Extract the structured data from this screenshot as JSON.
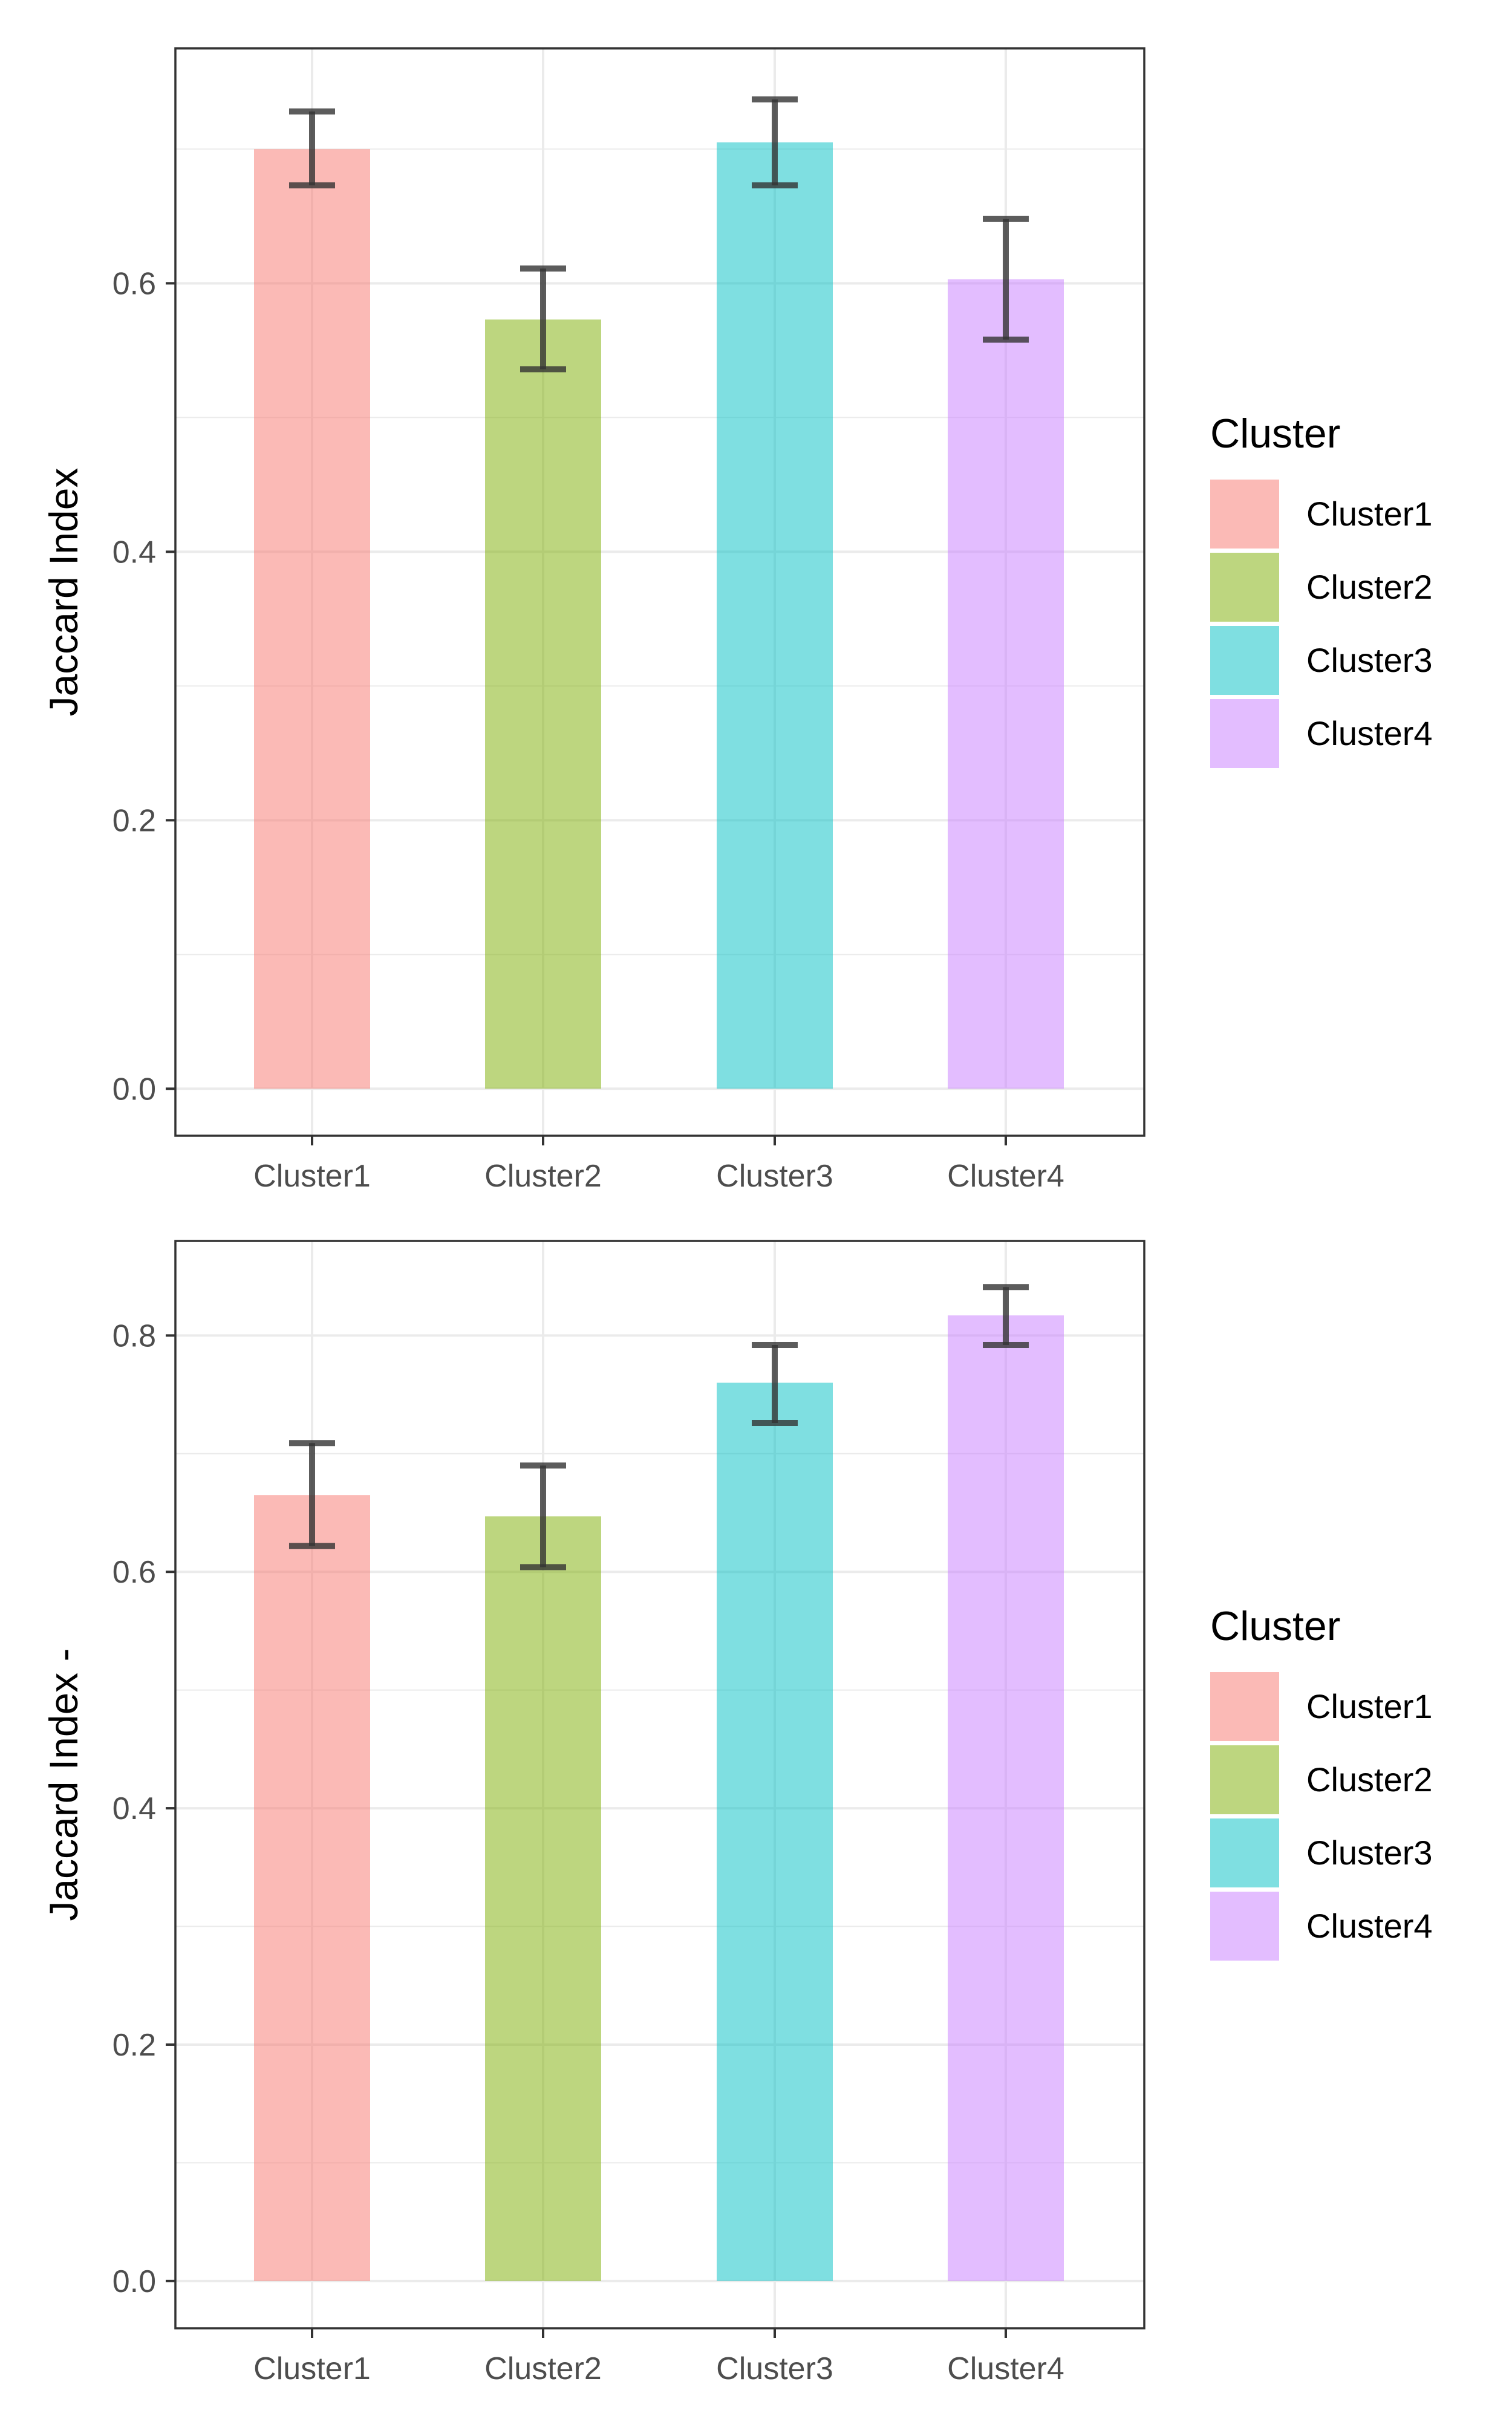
{
  "chart_data": [
    {
      "type": "bar",
      "categories": [
        "Cluster1",
        "Cluster2",
        "Cluster3",
        "Cluster4"
      ],
      "values": [
        0.7,
        0.573,
        0.705,
        0.603
      ],
      "error_low": [
        0.673,
        0.536,
        0.673,
        0.558
      ],
      "error_high": [
        0.728,
        0.611,
        0.737,
        0.648
      ],
      "title": "",
      "xlabel": "",
      "ylabel": "Jaccard Index",
      "ylim": [
        -0.035,
        0.775
      ],
      "yticks": [
        0.0,
        0.2,
        0.4,
        0.6
      ],
      "ytick_labels": [
        "0.0",
        "0.2",
        "0.4",
        "0.6"
      ],
      "grid": true,
      "legend": {
        "title": "Cluster",
        "placement": "right",
        "entries": [
          "Cluster1",
          "Cluster2",
          "Cluster3",
          "Cluster4"
        ]
      }
    },
    {
      "type": "bar",
      "categories": [
        "Cluster1",
        "Cluster2",
        "Cluster3",
        "Cluster4"
      ],
      "values": [
        0.665,
        0.647,
        0.76,
        0.817
      ],
      "error_low": [
        0.622,
        0.604,
        0.726,
        0.792
      ],
      "error_high": [
        0.709,
        0.69,
        0.792,
        0.841
      ],
      "title": "",
      "xlabel": "",
      "ylabel": "Jaccard Index -",
      "ylim": [
        -0.04,
        0.88
      ],
      "yticks": [
        0.0,
        0.2,
        0.4,
        0.6,
        0.8
      ],
      "ytick_labels": [
        "0.0",
        "0.2",
        "0.4",
        "0.6",
        "0.8"
      ],
      "grid": true,
      "legend": {
        "title": "Cluster",
        "placement": "right",
        "entries": [
          "Cluster1",
          "Cluster2",
          "Cluster3",
          "Cluster4"
        ]
      }
    }
  ],
  "colors": {
    "Cluster1": "#F8766D",
    "Cluster2": "#7CAE00",
    "Cluster3": "#00BFC4",
    "Cluster4": "#C77CFF",
    "bar_opacity": "0.5",
    "errorbar": "#333333",
    "grid": "#EBEBEB",
    "panel_border": "#333333"
  }
}
